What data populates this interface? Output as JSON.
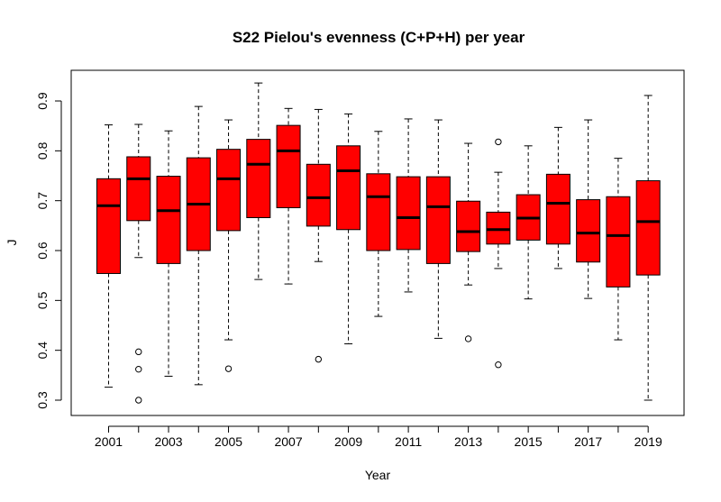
{
  "chart_data": {
    "type": "boxplot",
    "title": "S22 Pielou's evenness (C+P+H) per year",
    "xlabel": "Year",
    "ylabel": "J",
    "ylim": [
      0.28,
      0.95
    ],
    "yticks": [
      "0.3",
      "0.4",
      "0.5",
      "0.6",
      "0.7",
      "0.8",
      "0.9"
    ],
    "xtick_labels": [
      "2001",
      "2003",
      "2005",
      "2007",
      "2009",
      "2011",
      "2013",
      "2015",
      "2017",
      "2019"
    ],
    "box_color": "#ff0000",
    "boxes": [
      {
        "year": "2001",
        "min": 0.326,
        "q1": 0.554,
        "median": 0.69,
        "q3": 0.744,
        "max": 0.852,
        "outliers": []
      },
      {
        "year": "2002",
        "min": 0.586,
        "q1": 0.66,
        "median": 0.744,
        "q3": 0.788,
        "max": 0.853,
        "outliers": [
          0.397,
          0.362,
          0.3
        ]
      },
      {
        "year": "2003",
        "min": 0.348,
        "q1": 0.574,
        "median": 0.68,
        "q3": 0.749,
        "max": 0.84,
        "outliers": []
      },
      {
        "year": "2004",
        "min": 0.331,
        "q1": 0.6,
        "median": 0.693,
        "q3": 0.786,
        "max": 0.889,
        "outliers": []
      },
      {
        "year": "2005",
        "min": 0.421,
        "q1": 0.64,
        "median": 0.744,
        "q3": 0.803,
        "max": 0.862,
        "outliers": [
          0.363
        ]
      },
      {
        "year": "2006",
        "min": 0.542,
        "q1": 0.666,
        "median": 0.773,
        "q3": 0.823,
        "max": 0.936,
        "outliers": []
      },
      {
        "year": "2007",
        "min": 0.533,
        "q1": 0.686,
        "median": 0.8,
        "q3": 0.851,
        "max": 0.885,
        "outliers": []
      },
      {
        "year": "2008",
        "min": 0.578,
        "q1": 0.649,
        "median": 0.706,
        "q3": 0.773,
        "max": 0.883,
        "outliers": [
          0.382
        ]
      },
      {
        "year": "2009",
        "min": 0.413,
        "q1": 0.642,
        "median": 0.76,
        "q3": 0.81,
        "max": 0.874,
        "outliers": []
      },
      {
        "year": "2010",
        "min": 0.468,
        "q1": 0.6,
        "median": 0.708,
        "q3": 0.754,
        "max": 0.839,
        "outliers": []
      },
      {
        "year": "2011",
        "min": 0.517,
        "q1": 0.602,
        "median": 0.666,
        "q3": 0.748,
        "max": 0.864,
        "outliers": []
      },
      {
        "year": "2012",
        "min": 0.424,
        "q1": 0.574,
        "median": 0.688,
        "q3": 0.748,
        "max": 0.862,
        "outliers": []
      },
      {
        "year": "2013",
        "min": 0.531,
        "q1": 0.598,
        "median": 0.638,
        "q3": 0.699,
        "max": 0.815,
        "outliers": [
          0.423
        ]
      },
      {
        "year": "2014",
        "min": 0.564,
        "q1": 0.613,
        "median": 0.642,
        "q3": 0.677,
        "max": 0.757,
        "outliers": [
          0.818,
          0.371
        ]
      },
      {
        "year": "2015",
        "min": 0.503,
        "q1": 0.621,
        "median": 0.665,
        "q3": 0.712,
        "max": 0.81,
        "outliers": []
      },
      {
        "year": "2016",
        "min": 0.564,
        "q1": 0.613,
        "median": 0.695,
        "q3": 0.753,
        "max": 0.847,
        "outliers": []
      },
      {
        "year": "2017",
        "min": 0.504,
        "q1": 0.577,
        "median": 0.635,
        "q3": 0.702,
        "max": 0.862,
        "outliers": []
      },
      {
        "year": "2018",
        "min": 0.421,
        "q1": 0.527,
        "median": 0.63,
        "q3": 0.708,
        "max": 0.785,
        "outliers": []
      },
      {
        "year": "2019",
        "min": 0.3,
        "q1": 0.551,
        "median": 0.658,
        "q3": 0.74,
        "max": 0.911,
        "outliers": []
      }
    ]
  }
}
